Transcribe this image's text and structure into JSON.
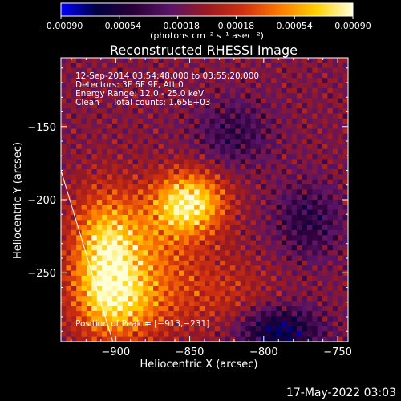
{
  "chart_data": {
    "type": "heatmap",
    "title": "Reconstructed RHESSI Image",
    "xlabel": "Heliocentric X (arcsec)",
    "ylabel": "Heliocentric Y (arcsec)",
    "xlim": [
      -937,
      -743
    ],
    "ylim": [
      -297,
      -103
    ],
    "xticks": [
      -900,
      -850,
      -800,
      -750
    ],
    "yticks": [
      -150,
      -200,
      -250
    ],
    "xtick_labels": [
      "−900",
      "−850",
      "−800",
      "−750"
    ],
    "ytick_labels": [
      "−150",
      "−200",
      "−250"
    ],
    "colorbar": {
      "range": [
        -0.0009,
        0.0009
      ],
      "ticks": [
        -0.0009,
        -0.00054,
        -0.00018,
        0.00018,
        0.00054,
        0.0009
      ],
      "tick_labels": [
        "−0.00090",
        "−0.00054",
        "−0.00018",
        "0.00018",
        "0.00054",
        "0.00090"
      ],
      "units_label": "(photons cm⁻² s⁻¹ asec⁻²)",
      "colormap": [
        "#0000ff",
        "#000040",
        "#2b0038",
        "#5a1468",
        "#9a1a20",
        "#d03010",
        "#ff7a00",
        "#ffd000",
        "#ffffd8"
      ]
    },
    "annotations": [
      "12-Sep-2014 03:54:48.000 to 03:55:20.000",
      "Detectors: 3F 6F 9F, Att 0",
      "Energy Range: 12.0 - 25.0 keV",
      "Clean     Total counts: 1.65E+03"
    ],
    "peak_label": "Position of Peak = [−913,−231]",
    "peak_position": [
      -913,
      -231
    ],
    "limb": [
      [
        -937,
        -180
      ],
      [
        -902,
        -297
      ]
    ],
    "sources": [
      {
        "x": -850,
        "y": -202,
        "sx": 17,
        "sy": 15,
        "amp": 0.0009
      },
      {
        "x": -908,
        "y": -238,
        "sx": 16,
        "sy": 30,
        "amp": 0.00075
      },
      {
        "x": -895,
        "y": -272,
        "sx": 22,
        "sy": 18,
        "amp": 0.00055
      },
      {
        "x": -878,
        "y": -232,
        "sx": 24,
        "sy": 24,
        "amp": 0.0004
      },
      {
        "x": -830,
        "y": -265,
        "sx": 26,
        "sy": 20,
        "amp": 0.00025
      },
      {
        "x": -790,
        "y": -290,
        "sx": 20,
        "sy": 12,
        "amp": -0.0006
      },
      {
        "x": -820,
        "y": -155,
        "sx": 18,
        "sy": 16,
        "amp": -0.0003
      },
      {
        "x": -770,
        "y": -215,
        "sx": 16,
        "sy": 18,
        "amp": -0.00035
      }
    ],
    "grid": false,
    "legend": "none"
  },
  "footer": {
    "date": "17-May-2022 03:03"
  }
}
